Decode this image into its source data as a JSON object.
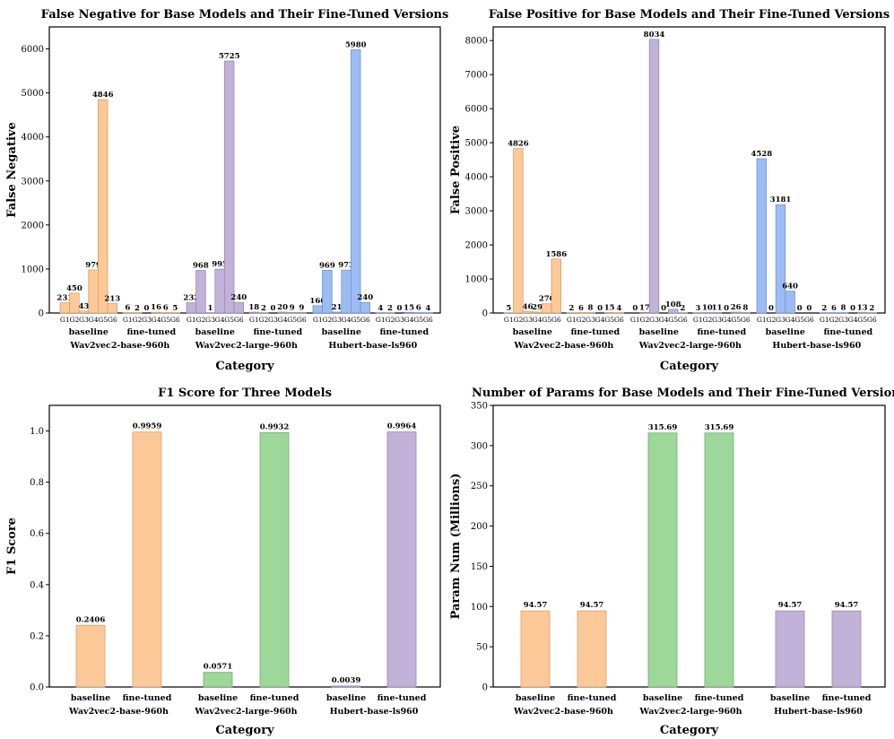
{
  "colors": {
    "orange": "#fbc997",
    "orange_stroke": "#d9a06a",
    "purple": "#c1b2d8",
    "purple_stroke": "#9a88b8",
    "blue": "#9dbcf4",
    "blue_stroke": "#6f93d4",
    "green": "#9dd79a",
    "green_stroke": "#6fae6c"
  },
  "chart_data": [
    {
      "type": "bar",
      "title": "False Negative for Base Models and Their Fine-Tuned Versions",
      "xlabel": "Category",
      "ylabel": "False Negative",
      "ylim": [
        0,
        6500
      ],
      "yticks": [
        0,
        1000,
        2000,
        3000,
        4000,
        5000,
        6000
      ],
      "group_labels": [
        "G1",
        "G2",
        "G3",
        "G4",
        "G5",
        "G6"
      ],
      "models": [
        {
          "name": "Wav2vec2-base-960h",
          "color": "orange",
          "baseline": [
            231,
            450,
            43,
            979,
            4846,
            213
          ],
          "fine_tuned": [
            6,
            2,
            0,
            16,
            6,
            5
          ]
        },
        {
          "name": "Wav2vec2-large-960h",
          "color": "purple",
          "baseline": [
            232,
            968,
            1,
            995,
            5725,
            240
          ],
          "fine_tuned": [
            18,
            2,
            0,
            20,
            9,
            9
          ]
        },
        {
          "name": "Hubert-base-ls960",
          "color": "blue",
          "baseline": [
            166,
            969,
            21,
            973,
            5980,
            240
          ],
          "fine_tuned": [
            4,
            2,
            0,
            15,
            6,
            4
          ]
        }
      ],
      "subcategories": [
        "baseline",
        "fine-tuned"
      ]
    },
    {
      "type": "bar",
      "title": "False Positive for Base Models and Their Fine-Tuned Versions",
      "xlabel": "Category",
      "ylabel": "False Positive",
      "ylim": [
        0,
        8400
      ],
      "yticks": [
        0,
        1000,
        2000,
        3000,
        4000,
        5000,
        6000,
        7000,
        8000
      ],
      "group_labels": [
        "G1",
        "G2",
        "G3",
        "G4",
        "G5",
        "G6"
      ],
      "models": [
        {
          "name": "Wav2vec2-base-960h",
          "color": "orange",
          "baseline": [
            5,
            4826,
            46,
            29,
            270,
            1586
          ],
          "fine_tuned": [
            2,
            6,
            8,
            0,
            15,
            4
          ]
        },
        {
          "name": "Wav2vec2-large-960h",
          "color": "purple",
          "baseline": [
            0,
            17,
            8034,
            0,
            108,
            2
          ],
          "fine_tuned": [
            3,
            10,
            11,
            0,
            26,
            8
          ]
        },
        {
          "name": "Hubert-base-ls960",
          "color": "blue",
          "baseline": [
            4528,
            0,
            3181,
            640,
            0,
            0
          ],
          "fine_tuned": [
            2,
            6,
            8,
            0,
            13,
            2
          ]
        }
      ],
      "subcategories": [
        "baseline",
        "fine-tuned"
      ]
    },
    {
      "type": "bar",
      "title": "F1 Score for Three Models",
      "xlabel": "Category",
      "ylabel": "F1 Score",
      "ylim": [
        0,
        1.1
      ],
      "yticks": [
        "0.0",
        "0.2",
        "0.4",
        "0.6",
        "0.8",
        "1.0"
      ],
      "models": [
        {
          "name": "Wav2vec2-base-960h",
          "color": "orange",
          "values": [
            0.2406,
            0.9959
          ],
          "labels": [
            "0.2406",
            "0.9959"
          ]
        },
        {
          "name": "Wav2vec2-large-960h",
          "color": "green",
          "values": [
            0.0571,
            0.9932
          ],
          "labels": [
            "0.0571",
            "0.9932"
          ]
        },
        {
          "name": "Hubert-base-ls960",
          "color": "purple",
          "values": [
            0.0039,
            0.9964
          ],
          "labels": [
            "0.0039",
            "0.9964"
          ]
        }
      ],
      "subcategories": [
        "baseline",
        "fine-tuned"
      ]
    },
    {
      "type": "bar",
      "title": "Number of Params for Base Models and Their Fine-Tuned Versions",
      "xlabel": "Category",
      "ylabel": "Param Num (Millions)",
      "ylim": [
        0,
        350
      ],
      "yticks": [
        "0",
        "50",
        "100",
        "150",
        "200",
        "250",
        "300",
        "350"
      ],
      "models": [
        {
          "name": "Wav2vec2-base-960h",
          "color": "orange",
          "values": [
            94.57,
            94.57
          ],
          "labels": [
            "94.57",
            "94.57"
          ]
        },
        {
          "name": "Wav2vec2-large-960h",
          "color": "green",
          "values": [
            315.69,
            315.69
          ],
          "labels": [
            "315.69",
            "315.69"
          ]
        },
        {
          "name": "Hubert-base-ls960",
          "color": "purple",
          "values": [
            94.57,
            94.57
          ],
          "labels": [
            "94.57",
            "94.57"
          ]
        }
      ],
      "subcategories": [
        "baseline",
        "fine-tuned"
      ]
    }
  ]
}
